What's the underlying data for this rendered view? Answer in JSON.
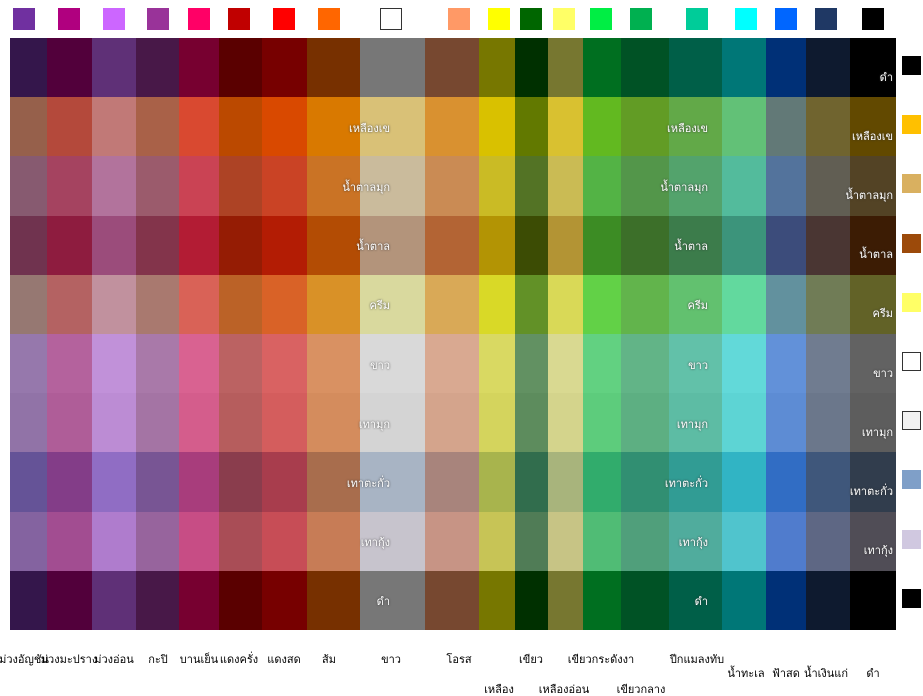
{
  "top_swatches": [
    "#7030a0",
    "#b0007f",
    "#cc66ff",
    "#993399",
    "#ff0066",
    "#c00000",
    "#ff0000",
    "#ff6600",
    "#ffffff",
    "#ff9966",
    "#ffff00",
    "#006600",
    "#ffff66",
    "#00ee44",
    "#00b050",
    "#00cc99",
    "#00ffff",
    "#0066ff",
    "#1f3864",
    "#000000"
  ],
  "column_labels": [
    "ม่วงอัญชัน",
    "ม่วงมะปราง",
    "ม่วงอ่อน",
    "กะปิ",
    "บานเย็น",
    "แดงครั่ง",
    "แดงสด",
    "ส้ม",
    "ขาว",
    "โอรส",
    "เหลือง",
    "เขียว",
    "เหลืองอ่อน",
    "เขียวกระดังงา",
    "เขียวกลาง",
    "ปีกแมลงทับ",
    "น้ำทะเล",
    "ฟ้าสด",
    "น้ำเงินแก่",
    "ดำ"
  ],
  "right_swatches": [
    "#000000",
    "#ffc000",
    "#d9b060",
    "#9c4a0a",
    "#ffff66",
    "#ffffff",
    "#f2f2f2",
    "#7f9fc8",
    "#d0c8e0",
    "#000000"
  ],
  "panel_labels": [
    [
      "เหลืองเข",
      "น้ำตาลมุก",
      "น้ำตาล",
      "ครีม",
      "ขาว",
      "เทามุก",
      "เทาตะกั่ว",
      "เทากุ้ง",
      "ดำ"
    ],
    [
      "เหลืองเข",
      "น้ำตาลมุก",
      "น้ำตาล",
      "ครีม",
      "ขาว",
      "เทามุก",
      "เทาตะกั่ว",
      "เทากุ้ง",
      "ดำ"
    ],
    [
      "ดำ",
      "เหลืองเข",
      "น้ำตาลมุก",
      "น้ำตาล",
      "ครีม",
      "ขาว",
      "เทามุก",
      "เทาตะกั่ว",
      "เทากุ้ง"
    ]
  ]
}
